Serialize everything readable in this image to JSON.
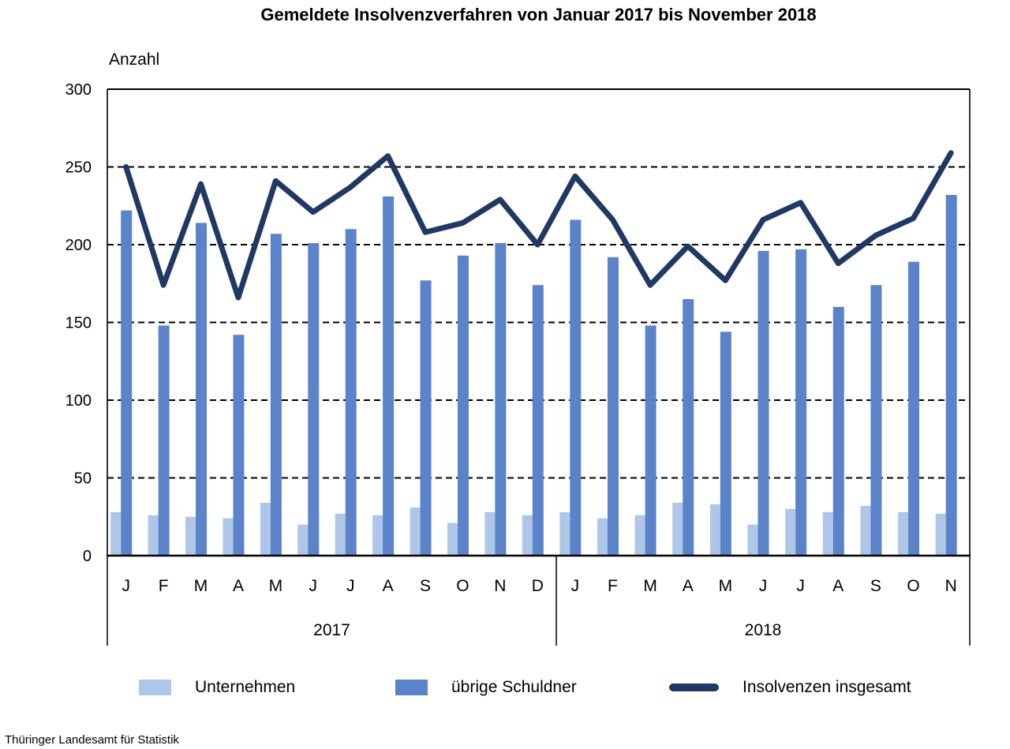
{
  "title": "Gemeldete Insolvenzverfahren von Januar 2017 bis November 2018",
  "y_axis": {
    "label": "Anzahl",
    "ticks": [
      0,
      50,
      100,
      150,
      200,
      250,
      300
    ],
    "max": 300
  },
  "source": "Thüringer Landesamt für Statistik",
  "colors": {
    "unternehmen": "#AEC6E8",
    "uebrige_schuldner": "#5B83C9",
    "insgesamt": "#1F3864",
    "grid": "#000000"
  },
  "chart_data": {
    "type": "bar",
    "overlay": "line",
    "title": "Gemeldete Insolvenzverfahren von Januar 2017 bis November 2018",
    "ylabel": "Anzahl",
    "ylim": [
      0,
      300
    ],
    "grid": "horizontal dashed every 50",
    "legend_position": "bottom",
    "groups": [
      {
        "year": "2017",
        "months": [
          "J",
          "F",
          "M",
          "A",
          "M",
          "J",
          "J",
          "A",
          "S",
          "O",
          "N",
          "D"
        ]
      },
      {
        "year": "2018",
        "months": [
          "J",
          "F",
          "M",
          "A",
          "M",
          "J",
          "J",
          "A",
          "S",
          "O",
          "N"
        ]
      }
    ],
    "series": [
      {
        "name": "Unternehmen",
        "type": "bar",
        "color": "#AEC6E8",
        "values": [
          28,
          26,
          25,
          24,
          34,
          20,
          27,
          26,
          31,
          21,
          28,
          26,
          28,
          24,
          26,
          34,
          33,
          20,
          30,
          28,
          32,
          28,
          27
        ]
      },
      {
        "name": "übrige Schuldner",
        "type": "bar",
        "color": "#5B83C9",
        "values": [
          222,
          148,
          214,
          142,
          207,
          201,
          210,
          231,
          177,
          193,
          201,
          174,
          216,
          192,
          148,
          165,
          144,
          196,
          197,
          160,
          174,
          189,
          232
        ]
      },
      {
        "name": "Insolvenzen insgesamt",
        "type": "line",
        "color": "#1F3864",
        "values": [
          250,
          174,
          239,
          166,
          241,
          221,
          237,
          257,
          208,
          214,
          229,
          200,
          244,
          216,
          174,
          199,
          177,
          216,
          227,
          188,
          206,
          217,
          259
        ]
      }
    ]
  }
}
